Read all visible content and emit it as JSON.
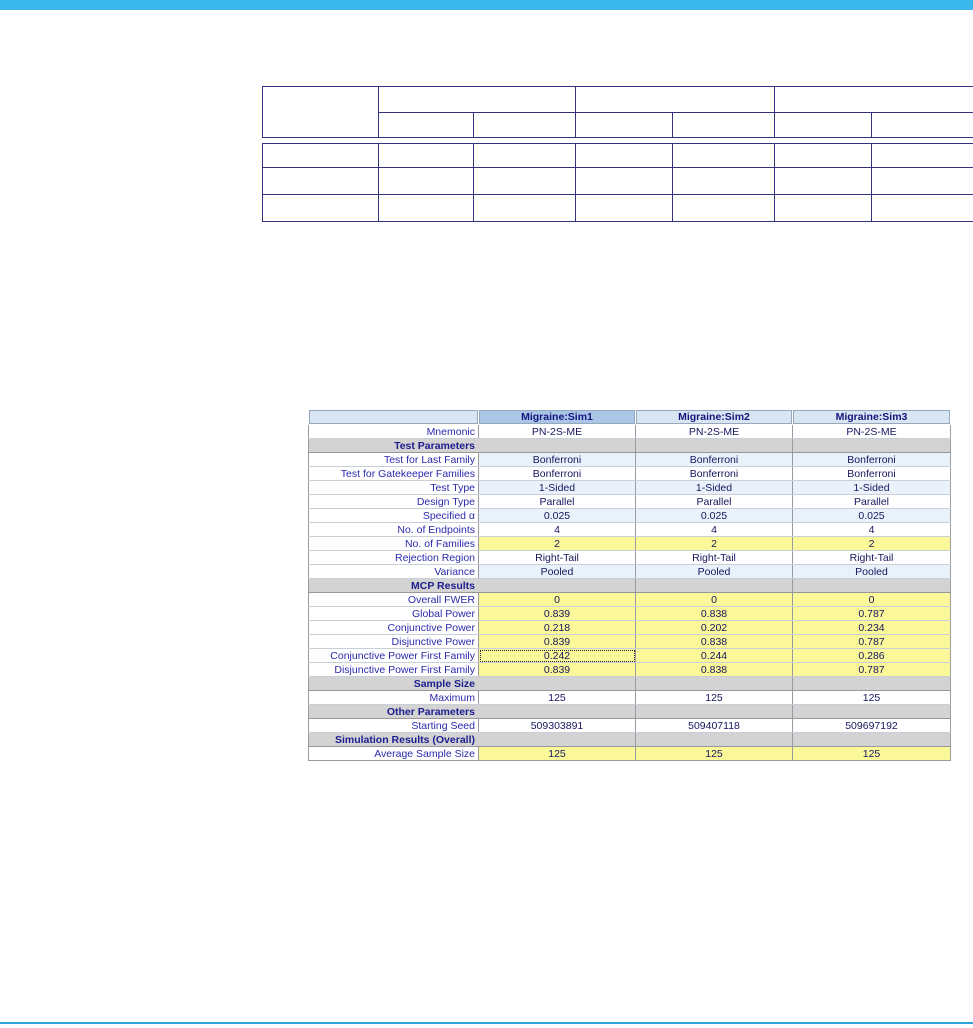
{
  "page": {
    "top_bar_color": "#3ab7ec",
    "bottom_bar_color": "#2ba6da"
  },
  "blank_grid": {
    "group_header_cells": 3,
    "sub_columns": 6,
    "body_rows": 3,
    "border_color": "#32327d",
    "cell_text": ""
  },
  "results_table": {
    "corner_label": "",
    "columns": [
      {
        "label": "Migraine:Sim1",
        "selected": true
      },
      {
        "label": "Migraine:Sim2",
        "selected": false
      },
      {
        "label": "Migraine:Sim3",
        "selected": false
      }
    ],
    "rows": [
      {
        "type": "data",
        "bg": "white",
        "label": "Mnemonic",
        "values": [
          "PN-2S-ME",
          "PN-2S-ME",
          "PN-2S-ME"
        ]
      },
      {
        "type": "section",
        "label": "Test Parameters",
        "values": [
          "",
          "",
          ""
        ]
      },
      {
        "type": "data",
        "bg": "blue",
        "label": "Test for Last Family",
        "values": [
          "Bonferroni",
          "Bonferroni",
          "Bonferroni"
        ]
      },
      {
        "type": "data",
        "bg": "white",
        "label": "Test for Gatekeeper Families",
        "values": [
          "Bonferroni",
          "Bonferroni",
          "Bonferroni"
        ]
      },
      {
        "type": "data",
        "bg": "blue",
        "label": "Test Type",
        "values": [
          "1-Sided",
          "1-Sided",
          "1-Sided"
        ]
      },
      {
        "type": "data",
        "bg": "white",
        "label": "Design Type",
        "values": [
          "Parallel",
          "Parallel",
          "Parallel"
        ]
      },
      {
        "type": "data",
        "bg": "blue",
        "label": "Specified α",
        "values": [
          "0.025",
          "0.025",
          "0.025"
        ]
      },
      {
        "type": "data",
        "bg": "white",
        "label": "No. of Endpoints",
        "values": [
          "4",
          "4",
          "4"
        ]
      },
      {
        "type": "data",
        "bg": "yellow",
        "label": "No. of Families",
        "values": [
          "2",
          "2",
          "2"
        ]
      },
      {
        "type": "data",
        "bg": "white",
        "label": "Rejection Region",
        "values": [
          "Right-Tail",
          "Right-Tail",
          "Right-Tail"
        ]
      },
      {
        "type": "data",
        "bg": "blue",
        "label": "Variance",
        "values": [
          "Pooled",
          "Pooled",
          "Pooled"
        ]
      },
      {
        "type": "section",
        "label": "MCP Results",
        "values": [
          "",
          "",
          ""
        ]
      },
      {
        "type": "data",
        "bg": "yellow",
        "label": "Overall FWER",
        "values": [
          "0",
          "0",
          "0"
        ]
      },
      {
        "type": "data",
        "bg": "yellow",
        "label": "Global Power",
        "values": [
          "0.839",
          "0.838",
          "0.787"
        ]
      },
      {
        "type": "data",
        "bg": "yellow",
        "label": "Conjunctive Power",
        "values": [
          "0.218",
          "0.202",
          "0.234"
        ]
      },
      {
        "type": "data",
        "bg": "yellow",
        "label": "Disjunctive Power",
        "values": [
          "0.839",
          "0.838",
          "0.787"
        ]
      },
      {
        "type": "data",
        "bg": "yellow",
        "label": "Conjunctive Power First Family",
        "values": [
          "0.242",
          "0.244",
          "0.286"
        ],
        "selected_cell": 0
      },
      {
        "type": "data",
        "bg": "yellow",
        "label": "Disjunctive Power First Family",
        "values": [
          "0.839",
          "0.838",
          "0.787"
        ]
      },
      {
        "type": "section",
        "label": "Sample Size",
        "values": [
          "",
          "",
          ""
        ]
      },
      {
        "type": "data",
        "bg": "white",
        "label": "Maximum",
        "values": [
          "125",
          "125",
          "125"
        ]
      },
      {
        "type": "section",
        "label": "Other Parameters",
        "values": [
          "",
          "",
          ""
        ]
      },
      {
        "type": "data",
        "bg": "white",
        "label": "Starting Seed",
        "values": [
          "509303891",
          "509407118",
          "509697192"
        ]
      },
      {
        "type": "section",
        "label": "Simulation Results (Overall)",
        "values": [
          "",
          "",
          ""
        ]
      },
      {
        "type": "data",
        "bg": "yellow",
        "label": "Average Sample Size",
        "values": [
          "125",
          "125",
          "125"
        ]
      }
    ],
    "colors": {
      "selected_header_bg": "#a9c6e7",
      "header_bg": "#d8e6f4",
      "row_alt_blue": "#e9f1fb",
      "highlight_yellow": "#fbf89a",
      "section_gray": "#d3d3d3",
      "grid_border": "#32327d"
    }
  }
}
